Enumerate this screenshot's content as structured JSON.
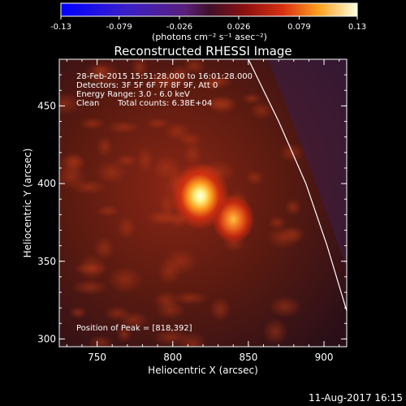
{
  "chart_data": {
    "type": "heatmap",
    "title": "Reconstructed RHESSI Image",
    "xlabel": "Heliocentric X (arcsec)",
    "ylabel": "Heliocentric Y (arcsec)",
    "xlim": [
      725,
      915
    ],
    "ylim": [
      295,
      480
    ],
    "x_ticks": [
      "750",
      "800",
      "850",
      "900"
    ],
    "y_ticks": [
      "300",
      "350",
      "400",
      "450"
    ],
    "colorbar": {
      "ticks": [
        "-0.13",
        "-0.079",
        "-0.026",
        "0.026",
        "0.079",
        "0.13"
      ],
      "unit_label": "(photons cm⁻² s⁻¹ asec⁻²)",
      "range": [
        -0.13,
        0.13
      ]
    },
    "sources": [
      {
        "x": 818,
        "y": 392,
        "intensity": 0.13
      },
      {
        "x": 840,
        "y": 377,
        "intensity": 0.085
      }
    ],
    "limb_curve": [
      [
        850,
        480
      ],
      [
        870,
        440
      ],
      [
        888,
        400
      ],
      [
        902,
        360
      ],
      [
        915,
        318
      ]
    ]
  },
  "annotations": {
    "time_range": "28-Feb-2015 15:51:28.000 to 16:01:28.000",
    "detectors": "Detectors: 3F 5F 6F 7F 8F 9F, Att 0",
    "energy": "Energy Range: 3.0 - 6.0 keV",
    "clean": "Clean",
    "total_counts": "Total counts: 6.38E+04",
    "peak": "Position of Peak = [818,392]"
  },
  "footer": {
    "timestamp": "11-Aug-2017 16:15"
  }
}
